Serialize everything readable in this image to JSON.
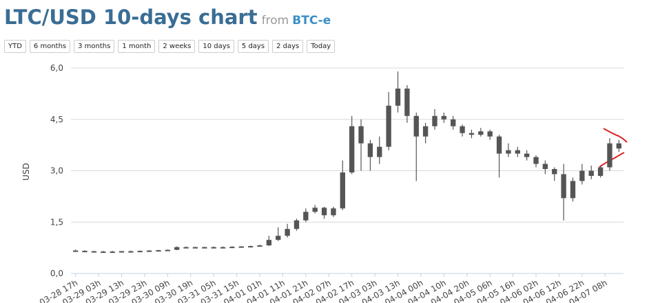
{
  "header": {
    "title": "LTC/USD 10-days chart",
    "from": "from",
    "source": "BTC-e"
  },
  "buttons": [
    "YTD",
    "6 months",
    "3 months",
    "1 month",
    "2 weeks",
    "10 days",
    "5 days",
    "2 days",
    "Today"
  ],
  "chart_data": {
    "type": "candlestick",
    "y_label": "USD",
    "color": "#555555",
    "grid": true,
    "x": [
      0,
      4,
      8,
      12,
      16,
      20,
      24,
      28,
      32,
      36,
      40,
      44,
      48,
      52,
      56,
      60,
      64,
      68,
      72,
      76,
      80,
      84,
      88,
      92,
      96,
      100,
      104,
      108,
      112,
      116,
      120,
      124,
      128,
      132,
      136,
      140,
      144,
      148,
      152,
      156,
      160,
      164,
      168,
      172,
      176,
      180,
      184,
      188,
      192,
      196,
      200,
      204,
      208,
      212,
      216,
      220,
      224,
      228,
      232,
      236
    ],
    "open": [
      0.67,
      0.66,
      0.65,
      0.64,
      0.64,
      0.64,
      0.65,
      0.65,
      0.66,
      0.67,
      0.68,
      0.69,
      0.77,
      0.77,
      0.76,
      0.77,
      0.77,
      0.77,
      0.78,
      0.79,
      0.8,
      0.82,
      0.98,
      1.1,
      1.3,
      1.55,
      1.8,
      1.92,
      1.7,
      1.9,
      2.95,
      4.3,
      3.8,
      3.4,
      3.7,
      4.9,
      5.4,
      4.6,
      4.0,
      4.3,
      4.6,
      4.5,
      4.3,
      4.1,
      4.05,
      4.15,
      4.0,
      3.5,
      3.6,
      3.5,
      3.4,
      3.2,
      3.05,
      2.9,
      2.2,
      2.7,
      3.0,
      2.85,
      3.1,
      3.8
    ],
    "high": [
      0.7,
      0.68,
      0.66,
      0.66,
      0.66,
      0.66,
      0.67,
      0.67,
      0.68,
      0.69,
      0.7,
      0.79,
      0.79,
      0.78,
      0.78,
      0.79,
      0.79,
      0.8,
      0.8,
      0.81,
      0.84,
      1.1,
      1.35,
      1.45,
      1.6,
      1.9,
      2.0,
      1.95,
      1.95,
      3.3,
      4.6,
      4.5,
      3.9,
      4.0,
      5.3,
      5.9,
      5.5,
      4.7,
      4.4,
      4.8,
      4.7,
      4.6,
      4.35,
      4.2,
      4.25,
      4.2,
      4.05,
      3.8,
      3.7,
      3.6,
      3.45,
      3.3,
      3.1,
      3.2,
      2.8,
      3.2,
      3.15,
      3.15,
      3.95,
      3.9
    ],
    "low": [
      0.64,
      0.63,
      0.62,
      0.62,
      0.62,
      0.63,
      0.63,
      0.64,
      0.65,
      0.66,
      0.67,
      0.68,
      0.75,
      0.74,
      0.75,
      0.75,
      0.75,
      0.76,
      0.77,
      0.78,
      0.79,
      0.8,
      0.95,
      1.05,
      1.25,
      1.5,
      1.75,
      1.6,
      1.65,
      1.85,
      2.9,
      3.0,
      3.0,
      3.2,
      3.6,
      4.7,
      4.4,
      2.7,
      3.8,
      4.2,
      4.4,
      4.2,
      4.0,
      3.95,
      4.0,
      3.9,
      2.8,
      3.4,
      3.4,
      3.3,
      3.1,
      2.9,
      2.7,
      1.55,
      2.1,
      2.6,
      2.75,
      2.8,
      3.0,
      3.55
    ],
    "close": [
      0.66,
      0.65,
      0.64,
      0.64,
      0.64,
      0.65,
      0.65,
      0.66,
      0.67,
      0.68,
      0.69,
      0.77,
      0.77,
      0.76,
      0.77,
      0.77,
      0.77,
      0.78,
      0.79,
      0.8,
      0.82,
      0.98,
      1.1,
      1.3,
      1.55,
      1.8,
      1.92,
      1.7,
      1.9,
      2.95,
      4.3,
      3.8,
      3.4,
      3.7,
      4.9,
      5.4,
      4.6,
      4.0,
      4.3,
      4.6,
      4.5,
      4.3,
      4.1,
      4.05,
      4.15,
      4.0,
      3.5,
      3.6,
      3.5,
      3.4,
      3.2,
      3.05,
      2.9,
      2.2,
      2.7,
      3.0,
      2.85,
      3.1,
      3.8,
      3.65
    ],
    "xlim": [
      -2,
      238
    ],
    "xticks": [
      {
        "value": 0,
        "label": "03-28 17h"
      },
      {
        "value": 10,
        "label": "03-29 03h"
      },
      {
        "value": 20,
        "label": "03-29 13h"
      },
      {
        "value": 30,
        "label": "03-29 23h"
      },
      {
        "value": 40,
        "label": "03-30 09h"
      },
      {
        "value": 50,
        "label": "03-30 19h"
      },
      {
        "value": 60,
        "label": "03-31 05h"
      },
      {
        "value": 70,
        "label": "03-31 15h"
      },
      {
        "value": 80,
        "label": "04-01 01h"
      },
      {
        "value": 90,
        "label": "04-01 11h"
      },
      {
        "value": 100,
        "label": "04-01 21h"
      },
      {
        "value": 110,
        "label": "04-02 07h"
      },
      {
        "value": 120,
        "label": "04-02 17h"
      },
      {
        "value": 130,
        "label": "04-03 03h"
      },
      {
        "value": 140,
        "label": "04-03 13h"
      },
      {
        "value": 150,
        "label": "04-04 00h"
      },
      {
        "value": 160,
        "label": "04-04 10h"
      },
      {
        "value": 170,
        "label": "04-04 20h"
      },
      {
        "value": 180,
        "label": "04-05 06h"
      },
      {
        "value": 190,
        "label": "04-05 16h"
      },
      {
        "value": 200,
        "label": "04-06 02h"
      },
      {
        "value": 210,
        "label": "04-06 12h"
      },
      {
        "value": 220,
        "label": "04-06 22h"
      },
      {
        "value": 230,
        "label": "04-07 08h"
      }
    ],
    "ylim": [
      0,
      6
    ],
    "yticks": [
      {
        "value": 0,
        "label": "0,0"
      },
      {
        "value": 1.5,
        "label": "1,5"
      },
      {
        "value": 3,
        "label": "3,0"
      },
      {
        "value": 4.5,
        "label": "4,5"
      },
      {
        "value": 6,
        "label": "6,0"
      }
    ]
  }
}
